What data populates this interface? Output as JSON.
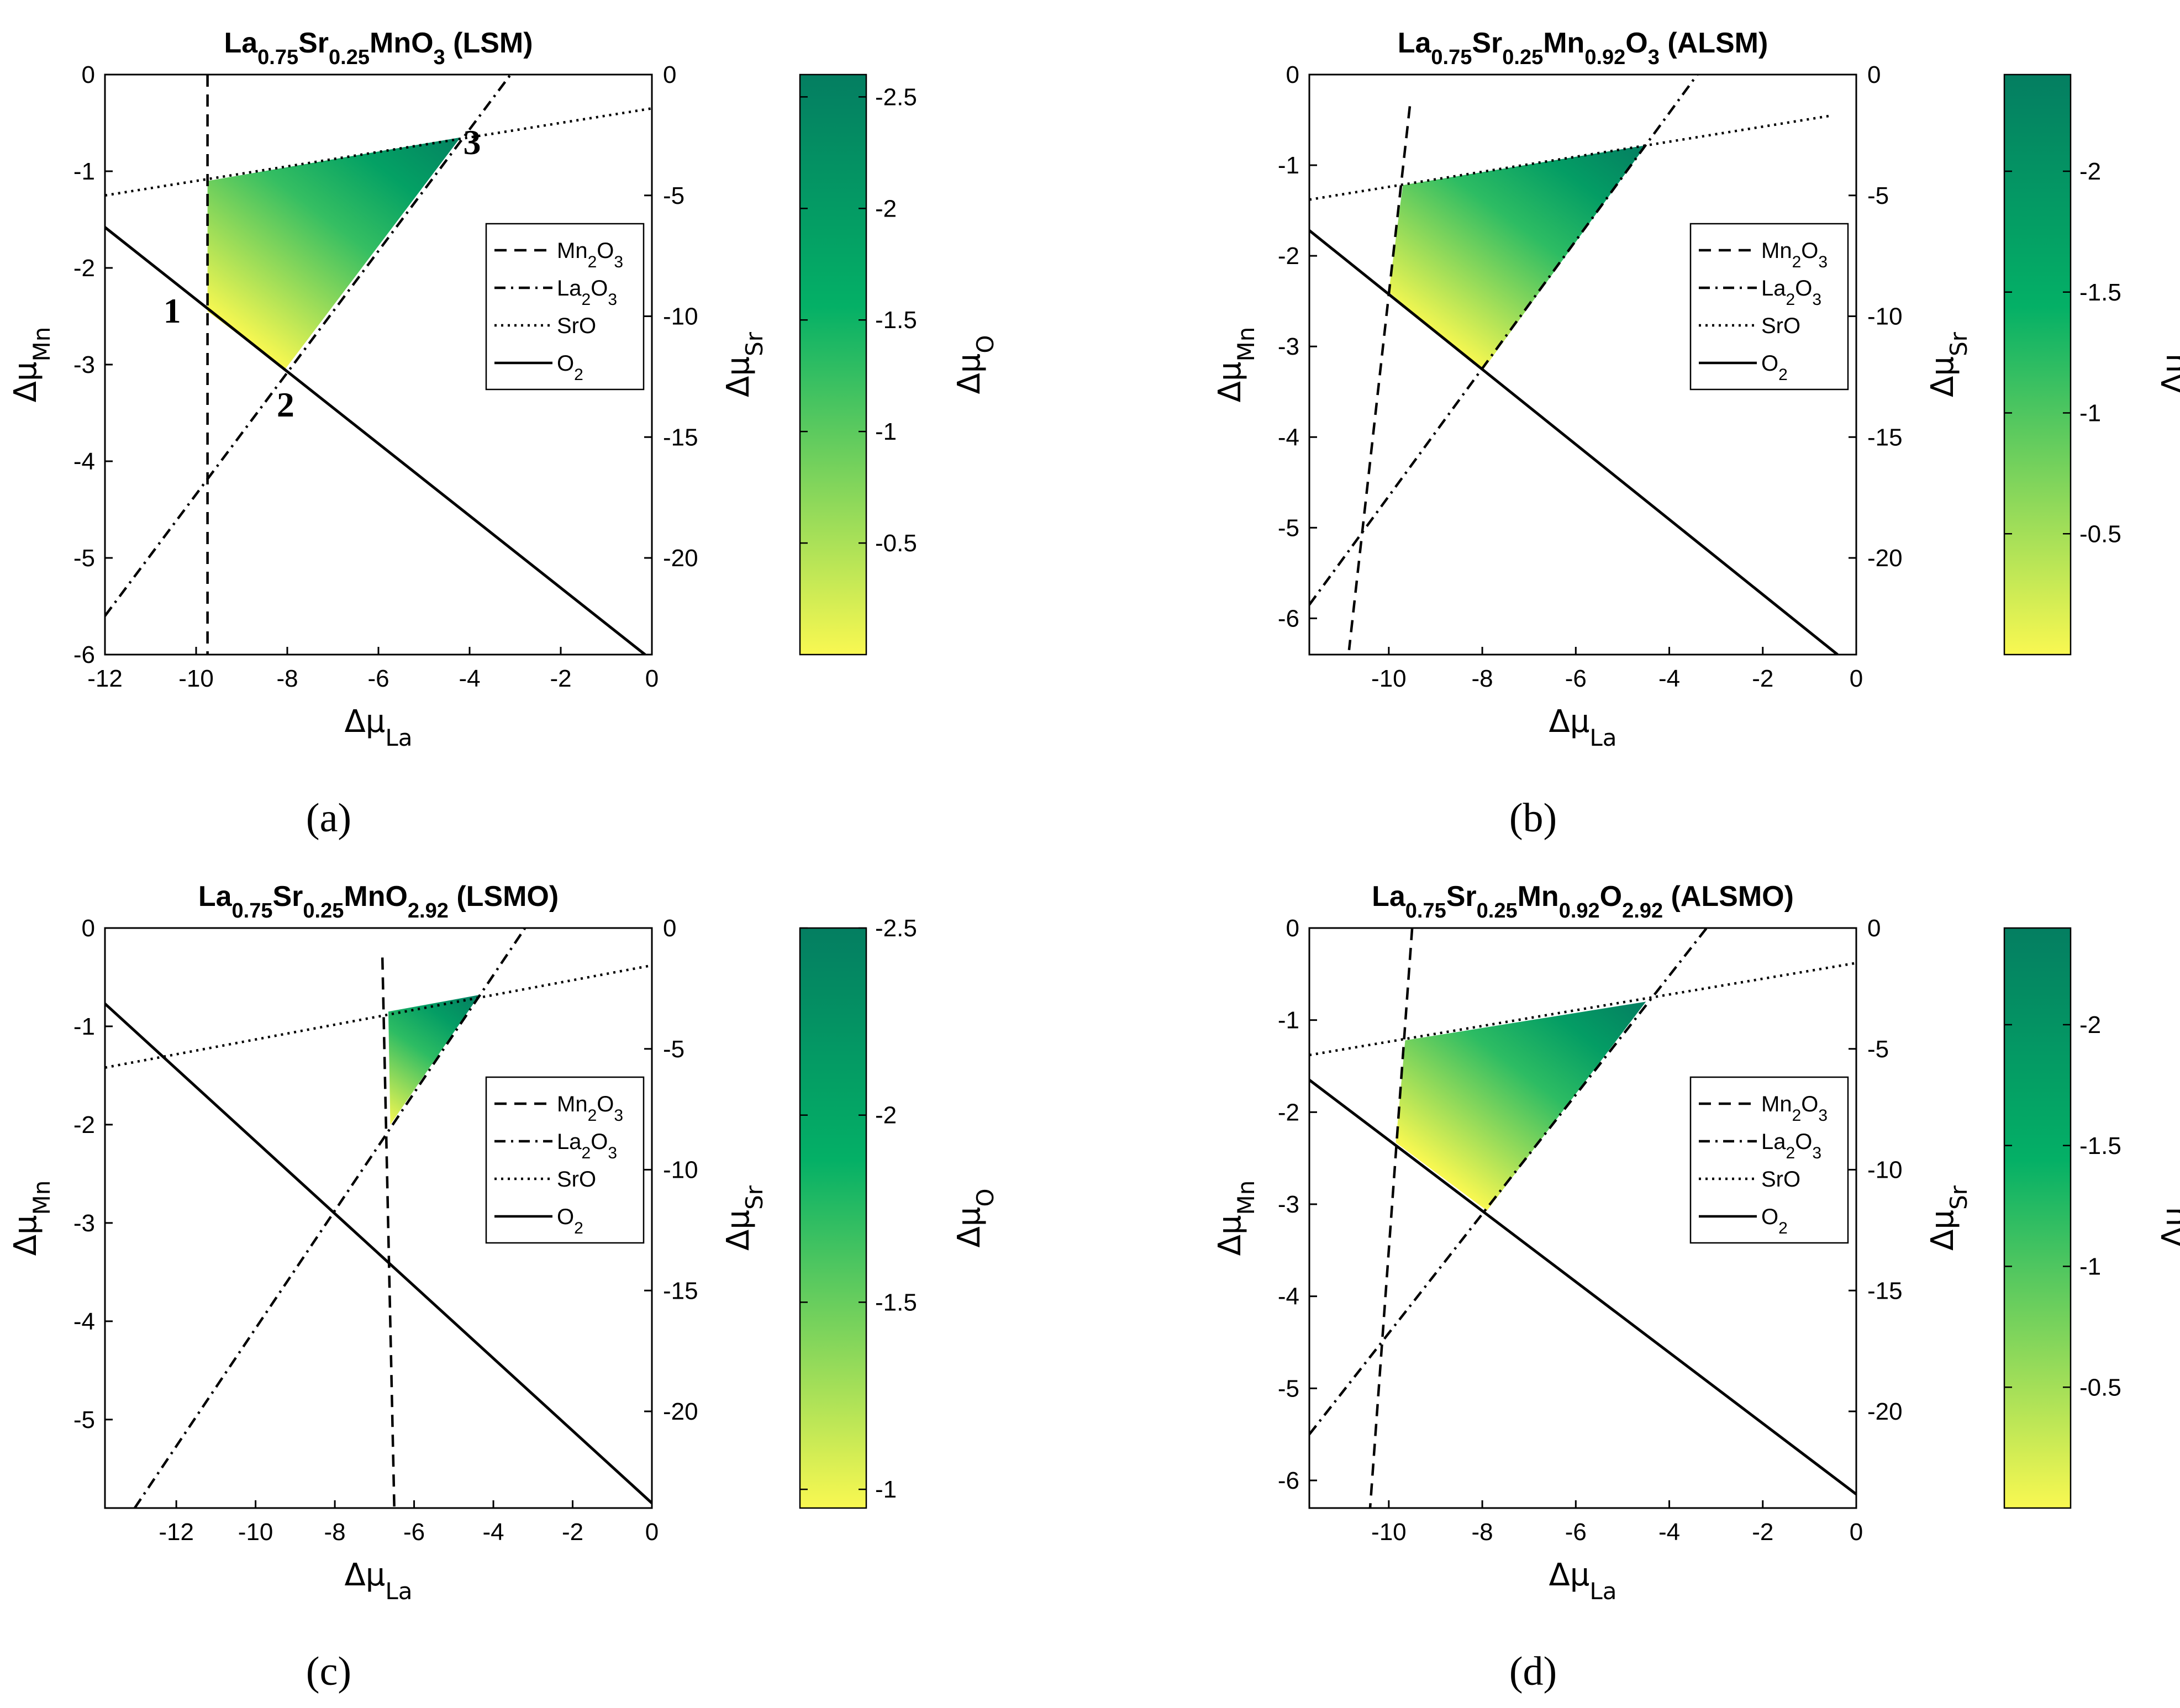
{
  "chart_data": [
    {
      "panel": "(a)",
      "type": "line",
      "title_parts": [
        "La",
        "0.75",
        "Sr",
        "0.25",
        "MnO",
        "3",
        " (LSM)"
      ],
      "xlabel": [
        "Δμ",
        "La"
      ],
      "ylabel": [
        "Δμ",
        "Mn"
      ],
      "y2label": [
        "Δμ",
        "Sr"
      ],
      "cbarlabel": [
        "Δμ",
        "O"
      ],
      "xlim": [
        -12,
        0
      ],
      "ylim": [
        -6,
        0
      ],
      "y2lim": [
        -24,
        0
      ],
      "xticks": [
        -12,
        -10,
        -8,
        -6,
        -4,
        -2,
        0
      ],
      "yticks": [
        0,
        -1,
        -2,
        -3,
        -4,
        -5,
        -6
      ],
      "y2ticks": [
        0,
        -5,
        -10,
        -15,
        -20
      ],
      "cbar_range": [
        0,
        -2.6
      ],
      "cbar_ticks": [
        -2.5,
        -2,
        -1.5,
        -1,
        -0.5
      ],
      "legend": [
        "Mn2O3",
        "La2O3",
        "SrO",
        "O2"
      ],
      "series": [
        {
          "name": "Mn2O3",
          "style": "dashed",
          "points": [
            [
              -9.75,
              0
            ],
            [
              -9.75,
              -6
            ]
          ]
        },
        {
          "name": "La2O3",
          "style": "dashdot",
          "points": [
            [
              -12,
              -5.6
            ],
            [
              -3.1,
              0
            ]
          ]
        },
        {
          "name": "SrO",
          "style": "dotted",
          "points": [
            [
              -12,
              -1.25
            ],
            [
              0,
              -0.35
            ]
          ]
        },
        {
          "name": "O2",
          "style": "solid",
          "points": [
            [
              -12,
              -1.58
            ],
            [
              -0.15,
              -6
            ]
          ]
        }
      ],
      "region": [
        [
          -9.75,
          -1.1
        ],
        [
          -4.2,
          -0.65
        ],
        [
          -8.05,
          -3.05
        ],
        [
          -9.75,
          -2.45
        ]
      ],
      "region_o": [
        -0.9,
        -2.5,
        0,
        -0.1
      ],
      "corner_labels": [
        {
          "text": "1",
          "x": -9.75,
          "y": -2.45
        },
        {
          "text": "2",
          "x": -8.05,
          "y": -3.05
        },
        {
          "text": "3",
          "x": -4.2,
          "y": -0.65
        }
      ]
    },
    {
      "panel": "(b)",
      "type": "line",
      "title_parts": [
        "La",
        "0.75",
        "Sr",
        "0.25",
        "Mn",
        "0.92",
        "O",
        "3",
        " (ALSM)"
      ],
      "xlabel": [
        "Δμ",
        "La"
      ],
      "ylabel": [
        "Δμ",
        "Mn"
      ],
      "y2label": [
        "Δμ",
        "Sr"
      ],
      "cbarlabel": [
        "Δμ",
        "O"
      ],
      "xlim": [
        -11.7,
        0
      ],
      "ylim": [
        -6.4,
        0
      ],
      "y2lim": [
        -24,
        0
      ],
      "xticks": [
        -10,
        -8,
        -6,
        -4,
        -2,
        0
      ],
      "yticks": [
        0,
        -1,
        -2,
        -3,
        -4,
        -5,
        -6
      ],
      "y2ticks": [
        0,
        -5,
        -10,
        -15,
        -20
      ],
      "cbar_range": [
        0,
        -2.4
      ],
      "cbar_ticks": [
        -2,
        -1.5,
        -1,
        -0.5
      ],
      "legend": [
        "Mn2O3",
        "La2O3",
        "SrO",
        "O2"
      ],
      "series": [
        {
          "name": "Mn2O3",
          "style": "dashed",
          "points": [
            [
              -9.55,
              -0.35
            ],
            [
              -10.85,
              -6.35
            ]
          ]
        },
        {
          "name": "La2O3",
          "style": "dashdot",
          "points": [
            [
              -11.7,
              -5.85
            ],
            [
              -3.4,
              0
            ]
          ]
        },
        {
          "name": "SrO",
          "style": "dotted",
          "points": [
            [
              -11.7,
              -1.38
            ],
            [
              -0.5,
              -0.45
            ]
          ]
        },
        {
          "name": "O2",
          "style": "solid",
          "points": [
            [
              -11.7,
              -1.72
            ],
            [
              -0.4,
              -6.4
            ]
          ]
        }
      ],
      "region": [
        [
          -9.7,
          -1.22
        ],
        [
          -4.5,
          -0.78
        ],
        [
          -8.0,
          -3.27
        ],
        [
          -10.0,
          -2.4
        ]
      ],
      "region_o": [
        -0.9,
        -2.4,
        0,
        -0.1
      ],
      "corner_labels": []
    },
    {
      "panel": "(c)",
      "type": "line",
      "title_parts": [
        "La",
        "0.75",
        "Sr",
        "0.25",
        "MnO",
        "2.92",
        " (LSMO)"
      ],
      "xlabel": [
        "Δμ",
        "La"
      ],
      "ylabel": [
        "Δμ",
        "Mn"
      ],
      "y2label": [
        "Δμ",
        "Sr"
      ],
      "cbarlabel": [
        "Δμ",
        "O"
      ],
      "xlim": [
        -13.8,
        0
      ],
      "ylim": [
        -5.9,
        0
      ],
      "y2lim": [
        -24,
        0
      ],
      "xticks": [
        -12,
        -10,
        -8,
        -6,
        -4,
        -2,
        0
      ],
      "yticks": [
        0,
        -1,
        -2,
        -3,
        -4,
        -5
      ],
      "y2ticks": [
        0,
        -5,
        -10,
        -15,
        -20
      ],
      "cbar_range": [
        -0.95,
        -2.5
      ],
      "cbar_ticks": [
        -2.5,
        -2,
        -1.5,
        -1
      ],
      "legend": [
        "Mn2O3",
        "La2O3",
        "SrO",
        "O2"
      ],
      "series": [
        {
          "name": "Mn2O3",
          "style": "dashed",
          "points": [
            [
              -6.8,
              -0.3
            ],
            [
              -6.5,
              -5.9
            ]
          ]
        },
        {
          "name": "La2O3",
          "style": "dashdot",
          "points": [
            [
              -13.05,
              -5.9
            ],
            [
              -3.2,
              0
            ]
          ]
        },
        {
          "name": "SrO",
          "style": "dotted",
          "points": [
            [
              -13.8,
              -1.42
            ],
            [
              0,
              -0.38
            ]
          ]
        },
        {
          "name": "O2",
          "style": "solid",
          "points": [
            [
              -13.8,
              -0.77
            ],
            [
              0,
              -5.85
            ]
          ]
        }
      ],
      "region": [
        [
          -6.65,
          -0.85
        ],
        [
          -4.35,
          -0.68
        ],
        [
          -6.6,
          -2.0
        ]
      ],
      "region_o": [
        -1.3,
        -2.5,
        -0.95
      ],
      "corner_labels": []
    },
    {
      "panel": "(d)",
      "type": "line",
      "title_parts": [
        "La",
        "0.75",
        "Sr",
        "0.25",
        "Mn",
        "0.92",
        "O",
        "2.92",
        " (ALSMO)"
      ],
      "xlabel": [
        "Δμ",
        "La"
      ],
      "ylabel": [
        "Δμ",
        "Mn"
      ],
      "y2label": [
        "Δμ",
        "Sr"
      ],
      "cbarlabel": [
        "Δμ",
        "O"
      ],
      "xlim": [
        -11.7,
        0
      ],
      "ylim": [
        -6.3,
        0
      ],
      "y2lim": [
        -24,
        0
      ],
      "xticks": [
        -10,
        -8,
        -6,
        -4,
        -2,
        0
      ],
      "yticks": [
        0,
        -1,
        -2,
        -3,
        -4,
        -5,
        -6
      ],
      "y2ticks": [
        0,
        -5,
        -10,
        -15,
        -20
      ],
      "cbar_range": [
        0,
        -2.4
      ],
      "cbar_ticks": [
        -2,
        -1.5,
        -1,
        -0.5
      ],
      "legend": [
        "Mn2O3",
        "La2O3",
        "SrO",
        "O2"
      ],
      "series": [
        {
          "name": "Mn2O3",
          "style": "dashed",
          "points": [
            [
              -9.5,
              0
            ],
            [
              -10.4,
              -6.3
            ]
          ]
        },
        {
          "name": "La2O3",
          "style": "dashdot",
          "points": [
            [
              -11.7,
              -5.5
            ],
            [
              -3.2,
              0
            ]
          ]
        },
        {
          "name": "SrO",
          "style": "dotted",
          "points": [
            [
              -11.7,
              -1.38
            ],
            [
              0,
              -0.38
            ]
          ]
        },
        {
          "name": "O2",
          "style": "solid",
          "points": [
            [
              -11.7,
              -1.65
            ],
            [
              0,
              -6.15
            ]
          ]
        }
      ],
      "region": [
        [
          -9.65,
          -1.22
        ],
        [
          -4.5,
          -0.8
        ],
        [
          -7.9,
          -3.07
        ],
        [
          -9.85,
          -2.33
        ]
      ],
      "region_o": [
        -0.9,
        -2.4,
        0,
        -0.1
      ],
      "corner_labels": []
    }
  ],
  "colors": {
    "cbar_low": "#f9f851",
    "cbar_mid": "#04b066",
    "cbar_high": "#047e61",
    "line": "#000000"
  }
}
